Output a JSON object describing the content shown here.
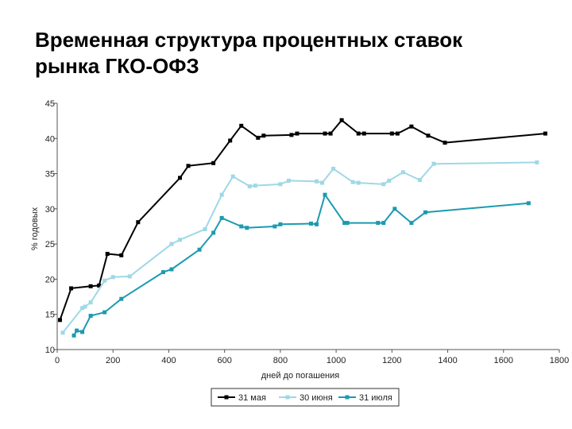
{
  "slide": {
    "title_line1": "Временная структура процентных ставок",
    "title_line2": "рынка ГКО-ОФЗ"
  },
  "chart_data": {
    "type": "line",
    "title": "",
    "xlabel": "дней до погашения",
    "ylabel": "% годовых",
    "xlim": [
      0,
      1800
    ],
    "ylim": [
      10,
      45
    ],
    "x_ticks": [
      0,
      200,
      400,
      600,
      800,
      1000,
      1200,
      1400,
      1600,
      1800
    ],
    "y_ticks": [
      10,
      15,
      20,
      25,
      30,
      35,
      40,
      45
    ],
    "grid": false,
    "legend_position": "bottom",
    "series": [
      {
        "name": "31 мая",
        "color": "#000000",
        "points": [
          [
            10,
            14.2
          ],
          [
            50,
            18.7
          ],
          [
            120,
            19.0
          ],
          [
            150,
            19.1
          ],
          [
            180,
            23.6
          ],
          [
            230,
            23.4
          ],
          [
            290,
            28.1
          ],
          [
            440,
            34.4
          ],
          [
            470,
            36.1
          ],
          [
            560,
            36.5
          ],
          [
            620,
            39.7
          ],
          [
            660,
            41.8
          ],
          [
            720,
            40.1
          ],
          [
            740,
            40.4
          ],
          [
            840,
            40.5
          ],
          [
            860,
            40.7
          ],
          [
            960,
            40.7
          ],
          [
            980,
            40.7
          ],
          [
            1020,
            42.6
          ],
          [
            1080,
            40.7
          ],
          [
            1100,
            40.7
          ],
          [
            1200,
            40.7
          ],
          [
            1220,
            40.7
          ],
          [
            1270,
            41.7
          ],
          [
            1330,
            40.4
          ],
          [
            1390,
            39.4
          ],
          [
            1750,
            40.7
          ]
        ]
      },
      {
        "name": "30 июня",
        "color": "#9fd8e6",
        "points": [
          [
            20,
            12.4
          ],
          [
            90,
            15.9
          ],
          [
            100,
            16.1
          ],
          [
            120,
            16.7
          ],
          [
            170,
            19.8
          ],
          [
            200,
            20.3
          ],
          [
            260,
            20.4
          ],
          [
            410,
            25.0
          ],
          [
            440,
            25.6
          ],
          [
            530,
            27.1
          ],
          [
            590,
            32.0
          ],
          [
            630,
            34.6
          ],
          [
            690,
            33.2
          ],
          [
            710,
            33.3
          ],
          [
            800,
            33.5
          ],
          [
            830,
            34.0
          ],
          [
            930,
            33.9
          ],
          [
            950,
            33.7
          ],
          [
            990,
            35.7
          ],
          [
            1060,
            33.8
          ],
          [
            1080,
            33.7
          ],
          [
            1170,
            33.5
          ],
          [
            1190,
            34.0
          ],
          [
            1240,
            35.2
          ],
          [
            1300,
            34.1
          ],
          [
            1350,
            36.4
          ],
          [
            1720,
            36.6
          ]
        ]
      },
      {
        "name": "31 июля",
        "color": "#1b9bb0",
        "points": [
          [
            60,
            12.0
          ],
          [
            70,
            12.7
          ],
          [
            90,
            12.5
          ],
          [
            120,
            14.8
          ],
          [
            170,
            15.3
          ],
          [
            230,
            17.2
          ],
          [
            380,
            21.0
          ],
          [
            410,
            21.4
          ],
          [
            510,
            24.2
          ],
          [
            560,
            26.6
          ],
          [
            590,
            28.7
          ],
          [
            660,
            27.5
          ],
          [
            680,
            27.3
          ],
          [
            780,
            27.5
          ],
          [
            800,
            27.8
          ],
          [
            910,
            27.9
          ],
          [
            930,
            27.8
          ],
          [
            960,
            32.0
          ],
          [
            1030,
            28.0
          ],
          [
            1040,
            28.0
          ],
          [
            1150,
            28.0
          ],
          [
            1170,
            28.0
          ],
          [
            1210,
            30.0
          ],
          [
            1270,
            28.0
          ],
          [
            1320,
            29.5
          ],
          [
            1690,
            30.8
          ]
        ]
      }
    ]
  }
}
